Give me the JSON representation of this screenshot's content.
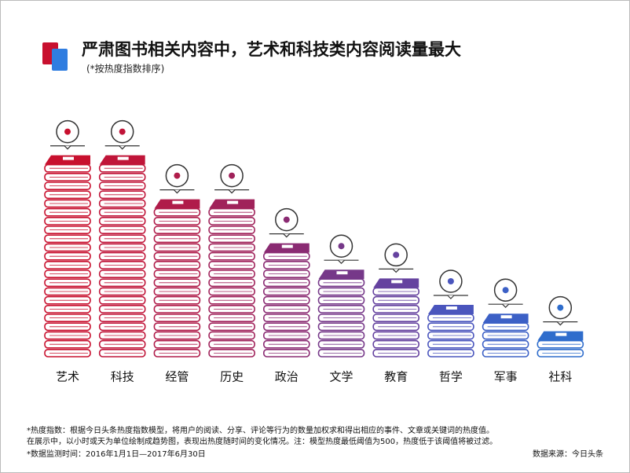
{
  "chart_data": {
    "type": "book-stack",
    "title": "严肃图书相关内容中，艺术和科技类内容阅读量最大",
    "subtitle": "(*按热度指数排序)",
    "categories": [
      "艺术",
      "科技",
      "经管",
      "历史",
      "政治",
      "文学",
      "教育",
      "哲学",
      "军事",
      "社科"
    ],
    "values": [
      22,
      22,
      17,
      17,
      12,
      9,
      8,
      5,
      4,
      2
    ],
    "colors": [
      "#c8102e",
      "#c01539",
      "#b01c4a",
      "#a0225a",
      "#8a2a72",
      "#763889",
      "#65429f",
      "#4a55bd",
      "#3c60c6",
      "#2f6dcc"
    ],
    "notes": [
      "*热度指数：根据今日头条热度指数模型，将用户的阅读、分享、评论等行为的数量加权求和得出相应的事件、文章或关键词的热度值。",
      "在展示中，以小时或天为单位绘制成趋势图，表现出热度随时间的变化情况。注：模型热度最低阈值为500，热度低于该阈值将被过滤。",
      "*数据监测时间：2016年1月1日—2017年6月30日"
    ],
    "source": "数据来源：今日头条"
  }
}
